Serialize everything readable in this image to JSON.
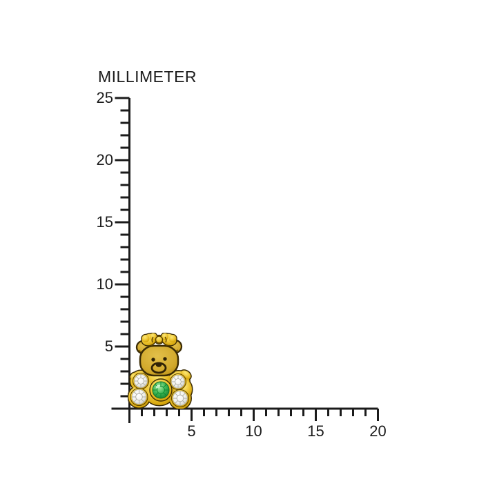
{
  "page": {
    "background_color": "#ffffff"
  },
  "ruler": {
    "title": "MILLIMETER",
    "line_color": "#1b1b1b",
    "label_color": "#1b1b1b",
    "y_axis": {
      "unit": "mm",
      "max": 25,
      "labeled_ticks": [
        5,
        10,
        15,
        20,
        25
      ],
      "minor_step": 1
    },
    "x_axis": {
      "unit": "mm",
      "max": 20,
      "labeled_ticks": [
        5,
        10,
        15,
        20
      ],
      "minor_step": 1
    }
  },
  "product": {
    "name": "gold teddy bear stud earring",
    "details": "Yellow-gold teddy bear with a hair bow, four round clear crystals on the paws and one larger round green crystal on the belly, seated at the ruler origin",
    "approx_width_mm": 5.4,
    "approx_height_mm": 6,
    "colors": {
      "gold": "#EFC837",
      "gold_shadow": "#A87E00",
      "outline": "#3A2B05",
      "crystal_white": "#F2F2EE",
      "crystal_green": "#3CB554"
    }
  }
}
